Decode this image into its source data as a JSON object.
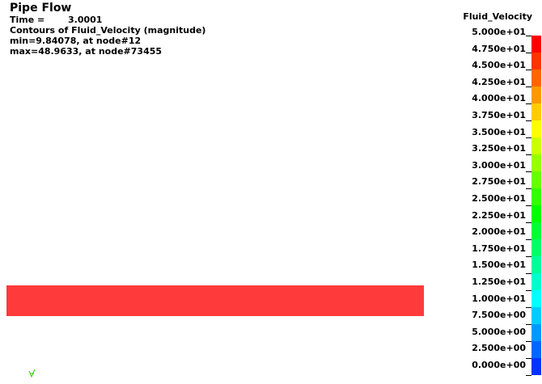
{
  "header": {
    "title": "Pipe Flow",
    "time_label": "Time =",
    "time_value": "3.0001",
    "contour_label": "Contours of Fluid_Velocity (magnitude)",
    "min_text": "min=9.84078, at node#12",
    "max_text": "max=48.9633, at node#73455"
  },
  "legend": {
    "title": "Fluid_Velocity",
    "labels": [
      "5.000e+01",
      "4.750e+01",
      "4.500e+01",
      "4.250e+01",
      "4.000e+01",
      "3.750e+01",
      "3.500e+01",
      "3.250e+01",
      "3.000e+01",
      "2.750e+01",
      "2.500e+01",
      "2.250e+01",
      "2.000e+01",
      "1.750e+01",
      "1.500e+01",
      "1.250e+01",
      "1.000e+01",
      "7.500e+00",
      "5.000e+00",
      "2.500e+00",
      "0.000e+00"
    ],
    "colors": [
      "#ff0000",
      "#ff3300",
      "#ff6600",
      "#ff9900",
      "#ffcc00",
      "#ffff00",
      "#ccff00",
      "#99ff00",
      "#66ff00",
      "#33ff00",
      "#00ff00",
      "#00ff33",
      "#00ff66",
      "#00ff99",
      "#00ffcc",
      "#00ffff",
      "#00ccff",
      "#0099ff",
      "#0066ff",
      "#0033ff"
    ]
  },
  "model": {
    "pipe_color": "#ff3a3a"
  },
  "axis_triad": {
    "color": "#33cc00"
  }
}
